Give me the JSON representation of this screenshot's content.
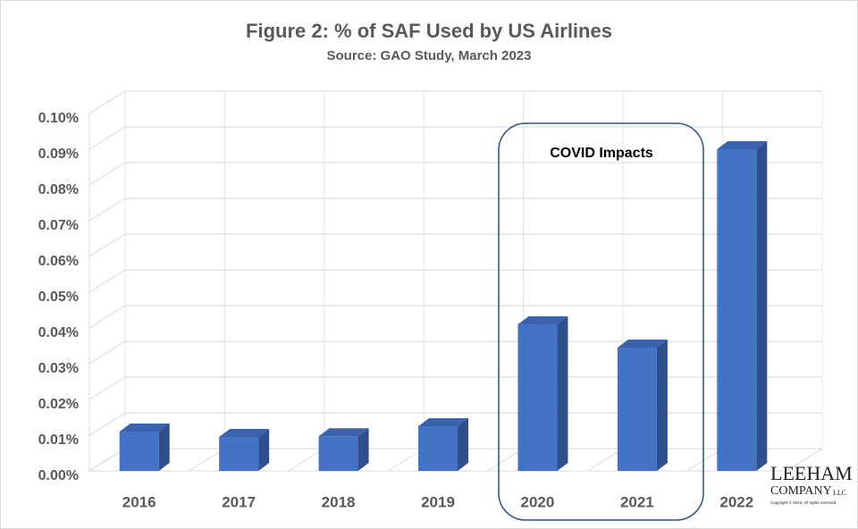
{
  "chart_data": {
    "type": "bar3d",
    "title": "Figure 2: % of SAF Used by US Airlines",
    "subtitle": "Source: GAO Study, March 2023",
    "categories": [
      "2016",
      "2017",
      "2018",
      "2019",
      "2020",
      "2021",
      "2022"
    ],
    "values": [
      0.011,
      0.0095,
      0.0097,
      0.0125,
      0.041,
      0.0345,
      0.09
    ],
    "color": "#4472c4",
    "ylim": [
      0,
      0.1
    ],
    "yticks": [
      {
        "value": 0,
        "label": "0.00%"
      },
      {
        "value": 0.01,
        "label": "0.01%"
      },
      {
        "value": 0.02,
        "label": "0.02%"
      },
      {
        "value": 0.03,
        "label": "0.03%"
      },
      {
        "value": 0.04,
        "label": "0.04%"
      },
      {
        "value": 0.05,
        "label": "0.05%"
      },
      {
        "value": 0.06,
        "label": "0.06%"
      },
      {
        "value": 0.07,
        "label": "0.07%"
      },
      {
        "value": 0.08,
        "label": "0.08%"
      },
      {
        "value": 0.09,
        "label": "0.09%"
      },
      {
        "value": 0.1,
        "label": "0.10%"
      }
    ],
    "grid": true,
    "annotation": "COVID Impacts"
  },
  "logo": {
    "line1": "LEEHAM",
    "line2": "COMPANY",
    "line3": "LLC",
    "copyright": "Copyright © 2023, All rights reserved."
  }
}
